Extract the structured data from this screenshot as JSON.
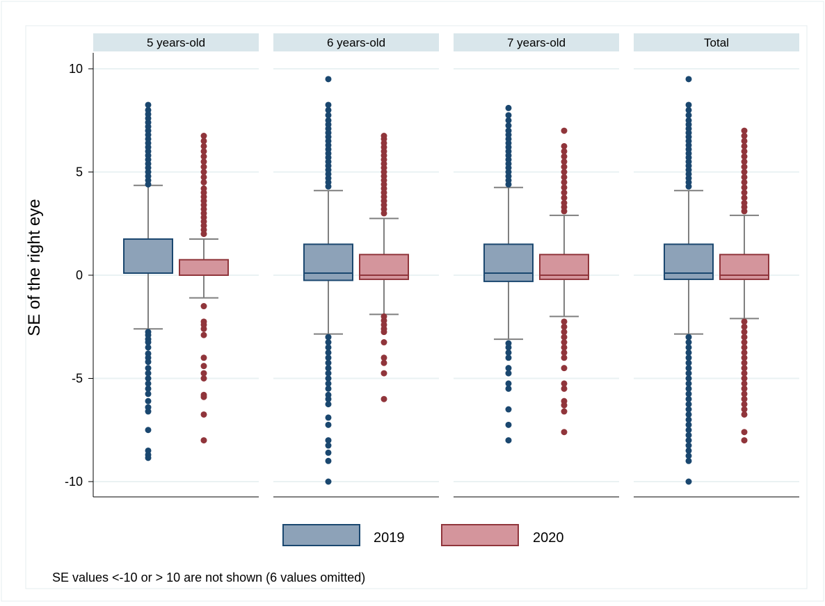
{
  "chart_data": {
    "type": "box",
    "ylabel": "SE of the right eye",
    "ylim": [
      -10.5,
      10.5
    ],
    "yticks": [
      10,
      5,
      0,
      -5,
      -10
    ],
    "ytick_labels": [
      "10",
      "5",
      "0",
      "-5",
      "-10"
    ],
    "grid": true,
    "legend_position": "bottom",
    "legend": [
      "2019",
      "2020"
    ],
    "note": "SE values <-10 or > 10 are not shown (6 values omitted)",
    "colors": {
      "2019_fill": "#8da2b8",
      "2019_line": "#1a476f",
      "2020_fill": "#d4959c",
      "2020_line": "#90353b",
      "whisker": "#7f7f7f",
      "panel_header": "#d9e6eb",
      "grid": "#eaf2f3"
    },
    "panels": [
      {
        "label": "5 years-old",
        "boxes": [
          {
            "series": "2019",
            "q1": 0.1,
            "median": 0.1,
            "q3": 1.75,
            "whisker_low": -2.6,
            "whisker_high": 4.35,
            "outliers_high": [
              4.4,
              4.6,
              4.8,
              5.0,
              5.2,
              5.4,
              5.6,
              5.8,
              6.0,
              6.2,
              6.4,
              6.6,
              6.8,
              7.0,
              7.2,
              7.4,
              7.6,
              7.8,
              8.0,
              8.25
            ],
            "outliers_low": [
              -2.75,
              -2.9,
              -3.1,
              -3.25,
              -3.5,
              -3.8,
              -4.0,
              -4.2,
              -4.5,
              -4.75,
              -5.0,
              -5.25,
              -5.5,
              -5.75,
              -6.1,
              -6.4,
              -6.6,
              -7.5,
              -8.5,
              -8.7,
              -8.85
            ]
          },
          {
            "series": "2020",
            "q1": 0.0,
            "median": 0.0,
            "q3": 0.75,
            "whisker_low": -1.1,
            "whisker_high": 1.75,
            "outliers_high": [
              2.0,
              2.2,
              2.4,
              2.6,
              2.8,
              3.0,
              3.2,
              3.4,
              3.6,
              3.8,
              4.0,
              4.2,
              4.5,
              4.75,
              5.0,
              5.25,
              5.5,
              5.75,
              6.0,
              6.25,
              6.5,
              6.75
            ],
            "outliers_low": [
              -1.5,
              -2.25,
              -2.4,
              -2.6,
              -2.9,
              -4.0,
              -4.4,
              -4.75,
              -5.0,
              -5.8,
              -5.9,
              -6.75,
              -8.0
            ]
          }
        ]
      },
      {
        "label": "6 years-old",
        "boxes": [
          {
            "series": "2019",
            "q1": -0.25,
            "median": 0.1,
            "q3": 1.5,
            "whisker_low": -2.85,
            "whisker_high": 4.1,
            "outliers_high": [
              4.3,
              4.5,
              4.7,
              4.9,
              5.1,
              5.3,
              5.5,
              5.7,
              5.9,
              6.1,
              6.3,
              6.5,
              6.7,
              6.9,
              7.1,
              7.3,
              7.5,
              7.75,
              8.0,
              8.25,
              9.5
            ],
            "outliers_low": [
              -3.0,
              -3.25,
              -3.5,
              -3.75,
              -4.0,
              -4.25,
              -4.5,
              -4.75,
              -5.0,
              -5.25,
              -5.5,
              -5.8,
              -6.0,
              -6.25,
              -6.9,
              -7.25,
              -8.0,
              -8.25,
              -8.6,
              -9.0,
              -10.0
            ]
          },
          {
            "series": "2020",
            "q1": -0.2,
            "median": 0.0,
            "q3": 1.0,
            "whisker_low": -1.9,
            "whisker_high": 2.75,
            "outliers_high": [
              3.0,
              3.2,
              3.4,
              3.6,
              3.8,
              4.0,
              4.2,
              4.4,
              4.6,
              4.8,
              5.0,
              5.2,
              5.4,
              5.6,
              5.8,
              6.0,
              6.2,
              6.4,
              6.6,
              6.75
            ],
            "outliers_low": [
              -2.0,
              -2.2,
              -2.4,
              -2.6,
              -2.75,
              -3.25,
              -4.0,
              -4.25,
              -4.75,
              -6.0
            ]
          }
        ]
      },
      {
        "label": "7 years-old",
        "boxes": [
          {
            "series": "2019",
            "q1": -0.3,
            "median": 0.1,
            "q3": 1.5,
            "whisker_low": -3.1,
            "whisker_high": 4.25,
            "outliers_high": [
              4.4,
              4.6,
              4.8,
              5.0,
              5.2,
              5.4,
              5.6,
              5.8,
              6.0,
              6.2,
              6.4,
              6.6,
              6.8,
              7.0,
              7.25,
              7.5,
              7.75,
              8.1
            ],
            "outliers_low": [
              -3.3,
              -3.5,
              -3.75,
              -4.0,
              -4.5,
              -4.75,
              -5.25,
              -5.5,
              -6.5,
              -7.25,
              -8.0
            ]
          },
          {
            "series": "2020",
            "q1": -0.2,
            "median": 0.0,
            "q3": 1.0,
            "whisker_low": -2.0,
            "whisker_high": 2.9,
            "outliers_high": [
              3.1,
              3.3,
              3.5,
              3.75,
              4.0,
              4.25,
              4.5,
              4.75,
              5.0,
              5.25,
              5.5,
              5.75,
              6.0,
              6.25,
              7.0
            ],
            "outliers_low": [
              -2.25,
              -2.5,
              -2.75,
              -3.0,
              -3.25,
              -3.5,
              -3.75,
              -4.0,
              -4.5,
              -5.25,
              -5.5,
              -6.1,
              -6.3,
              -6.6,
              -7.6
            ]
          }
        ]
      },
      {
        "label": "Total",
        "boxes": [
          {
            "series": "2019",
            "q1": -0.2,
            "median": 0.1,
            "q3": 1.5,
            "whisker_low": -2.85,
            "whisker_high": 4.1,
            "outliers_high": [
              4.3,
              4.5,
              4.7,
              4.9,
              5.1,
              5.3,
              5.5,
              5.7,
              5.9,
              6.1,
              6.3,
              6.5,
              6.7,
              6.9,
              7.1,
              7.3,
              7.5,
              7.75,
              8.0,
              8.25,
              9.5
            ],
            "outliers_low": [
              -3.0,
              -3.25,
              -3.5,
              -3.75,
              -4.0,
              -4.25,
              -4.5,
              -4.75,
              -5.0,
              -5.25,
              -5.5,
              -5.75,
              -6.0,
              -6.25,
              -6.5,
              -6.75,
              -7.0,
              -7.25,
              -7.5,
              -7.75,
              -8.0,
              -8.25,
              -8.5,
              -8.75,
              -9.0,
              -10.0
            ]
          },
          {
            "series": "2020",
            "q1": -0.2,
            "median": 0.0,
            "q3": 1.0,
            "whisker_low": -2.1,
            "whisker_high": 2.9,
            "outliers_high": [
              3.1,
              3.3,
              3.5,
              3.75,
              4.0,
              4.25,
              4.5,
              4.75,
              5.0,
              5.25,
              5.5,
              5.75,
              6.0,
              6.25,
              6.5,
              6.75,
              7.0
            ],
            "outliers_low": [
              -2.25,
              -2.5,
              -2.75,
              -3.0,
              -3.25,
              -3.5,
              -3.75,
              -4.0,
              -4.25,
              -4.5,
              -4.75,
              -5.0,
              -5.25,
              -5.5,
              -5.75,
              -6.0,
              -6.25,
              -6.5,
              -6.75,
              -7.6,
              -8.0
            ]
          }
        ]
      }
    ]
  }
}
